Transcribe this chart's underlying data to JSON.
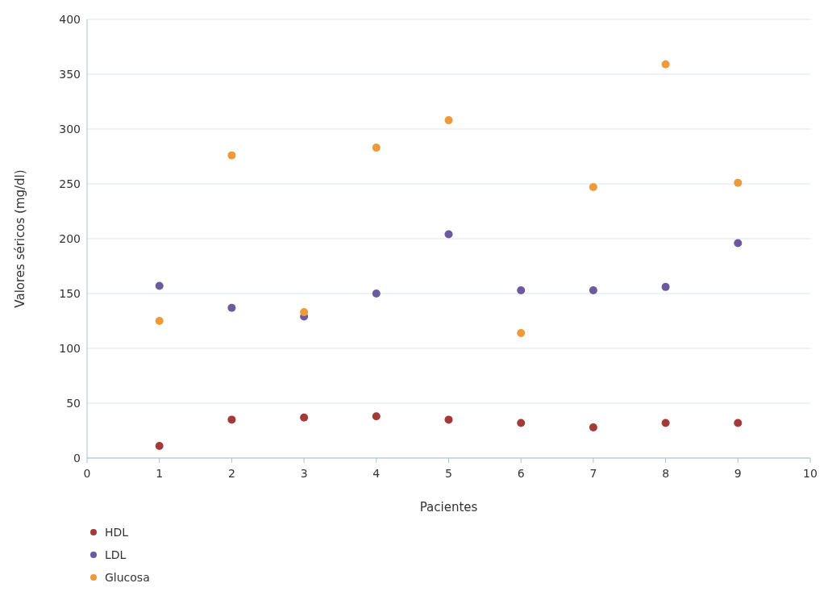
{
  "chart_data": {
    "type": "scatter",
    "xlabel": "Pacientes",
    "ylabel": "Valores séricos (mg/dl)",
    "xlim": [
      0,
      10
    ],
    "xticks": [
      0,
      1,
      2,
      3,
      4,
      5,
      6,
      7,
      8,
      9,
      10
    ],
    "ylim": [
      0,
      400
    ],
    "yticks": [
      0,
      50,
      100,
      150,
      200,
      250,
      300,
      350,
      400
    ],
    "grid": "y",
    "legend": "bottom left",
    "marker": "circle",
    "x": [
      1,
      2,
      3,
      4,
      5,
      6,
      7,
      8,
      9
    ],
    "series": [
      {
        "name": "HDL",
        "color": "#a33a3a",
        "values": [
          11,
          35,
          37,
          38,
          35,
          32,
          28,
          32,
          32
        ]
      },
      {
        "name": "LDL",
        "color": "#6b5b9e",
        "values": [
          157,
          137,
          129,
          150,
          204,
          153,
          153,
          156,
          196
        ]
      },
      {
        "name": "Glucosa",
        "color": "#ee9a3a",
        "values": [
          125,
          276,
          133,
          283,
          308,
          114,
          247,
          359,
          251
        ]
      }
    ]
  }
}
